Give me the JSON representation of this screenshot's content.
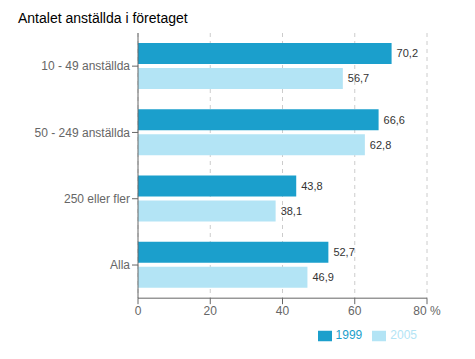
{
  "chart_data": {
    "type": "bar",
    "orientation": "horizontal",
    "title": "Antalet anställda i företaget",
    "categories": [
      "10 - 49 anställda",
      "50 - 249 anställda",
      "250 eller fler",
      "Alla"
    ],
    "series": [
      {
        "name": "1999",
        "color": "#1b9fcc",
        "values": [
          70.2,
          66.6,
          43.8,
          52.7
        ],
        "value_labels": [
          "70,2",
          "66,6",
          "43,8",
          "52,7"
        ]
      },
      {
        "name": "2005",
        "color": "#b3e4f5",
        "values": [
          56.7,
          62.8,
          38.1,
          46.9
        ],
        "value_labels": [
          "56,7",
          "62,8",
          "38,1",
          "46,9"
        ]
      }
    ],
    "xlim": [
      0,
      80
    ],
    "xticks": [
      0,
      20,
      40,
      60,
      {
        "value": 80,
        "label": "80 %"
      }
    ],
    "grid": true,
    "legend": "lower right",
    "data_labels": true
  }
}
